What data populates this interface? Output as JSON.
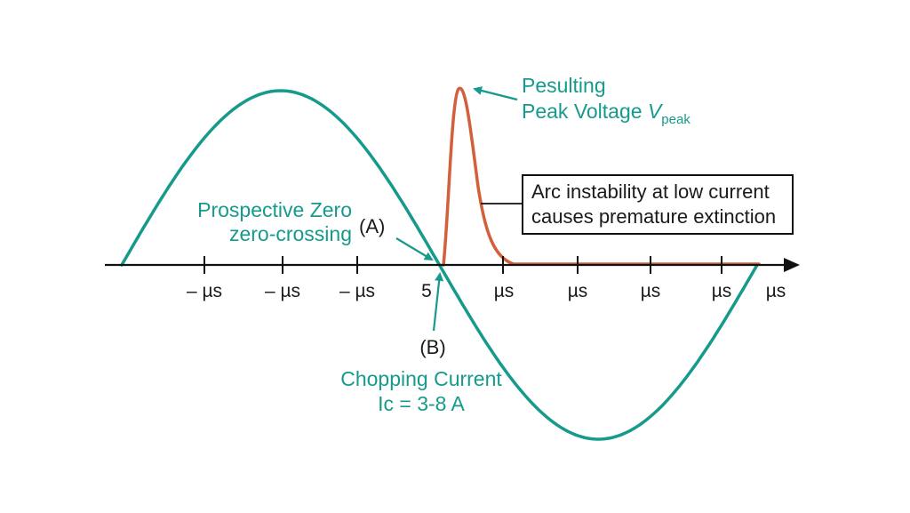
{
  "colors": {
    "current_wave": "#169a8c",
    "voltage_spike": "#d2603a",
    "axis": "#111111",
    "label_teal": "#169a8c",
    "label_dark": "#1a1a1a"
  },
  "axis": {
    "tick_labels": [
      "– µs",
      "– µs",
      "– µs",
      "5",
      "µs",
      "µs",
      "µs",
      "µs",
      "µs"
    ]
  },
  "labels": {
    "resulting_line1": "Pesulting",
    "resulting_line2": "Peak Voltage ",
    "resulting_v": "V",
    "resulting_sub": "peak",
    "prospective_line1": "Prospective Zero",
    "prospective_line2": "zero-crossing",
    "marker_a": "(A)",
    "marker_b": "(B)",
    "chopping_line1": "Chopping Current",
    "chopping_line2": "Ic = 3-8 A",
    "callout_line1": "Arc instability at low current",
    "callout_line2": "causes premature extinction"
  },
  "icons": {
    "axis_arrow": "arrowhead-right-icon",
    "pointer": "arrow-pointer-icon"
  }
}
